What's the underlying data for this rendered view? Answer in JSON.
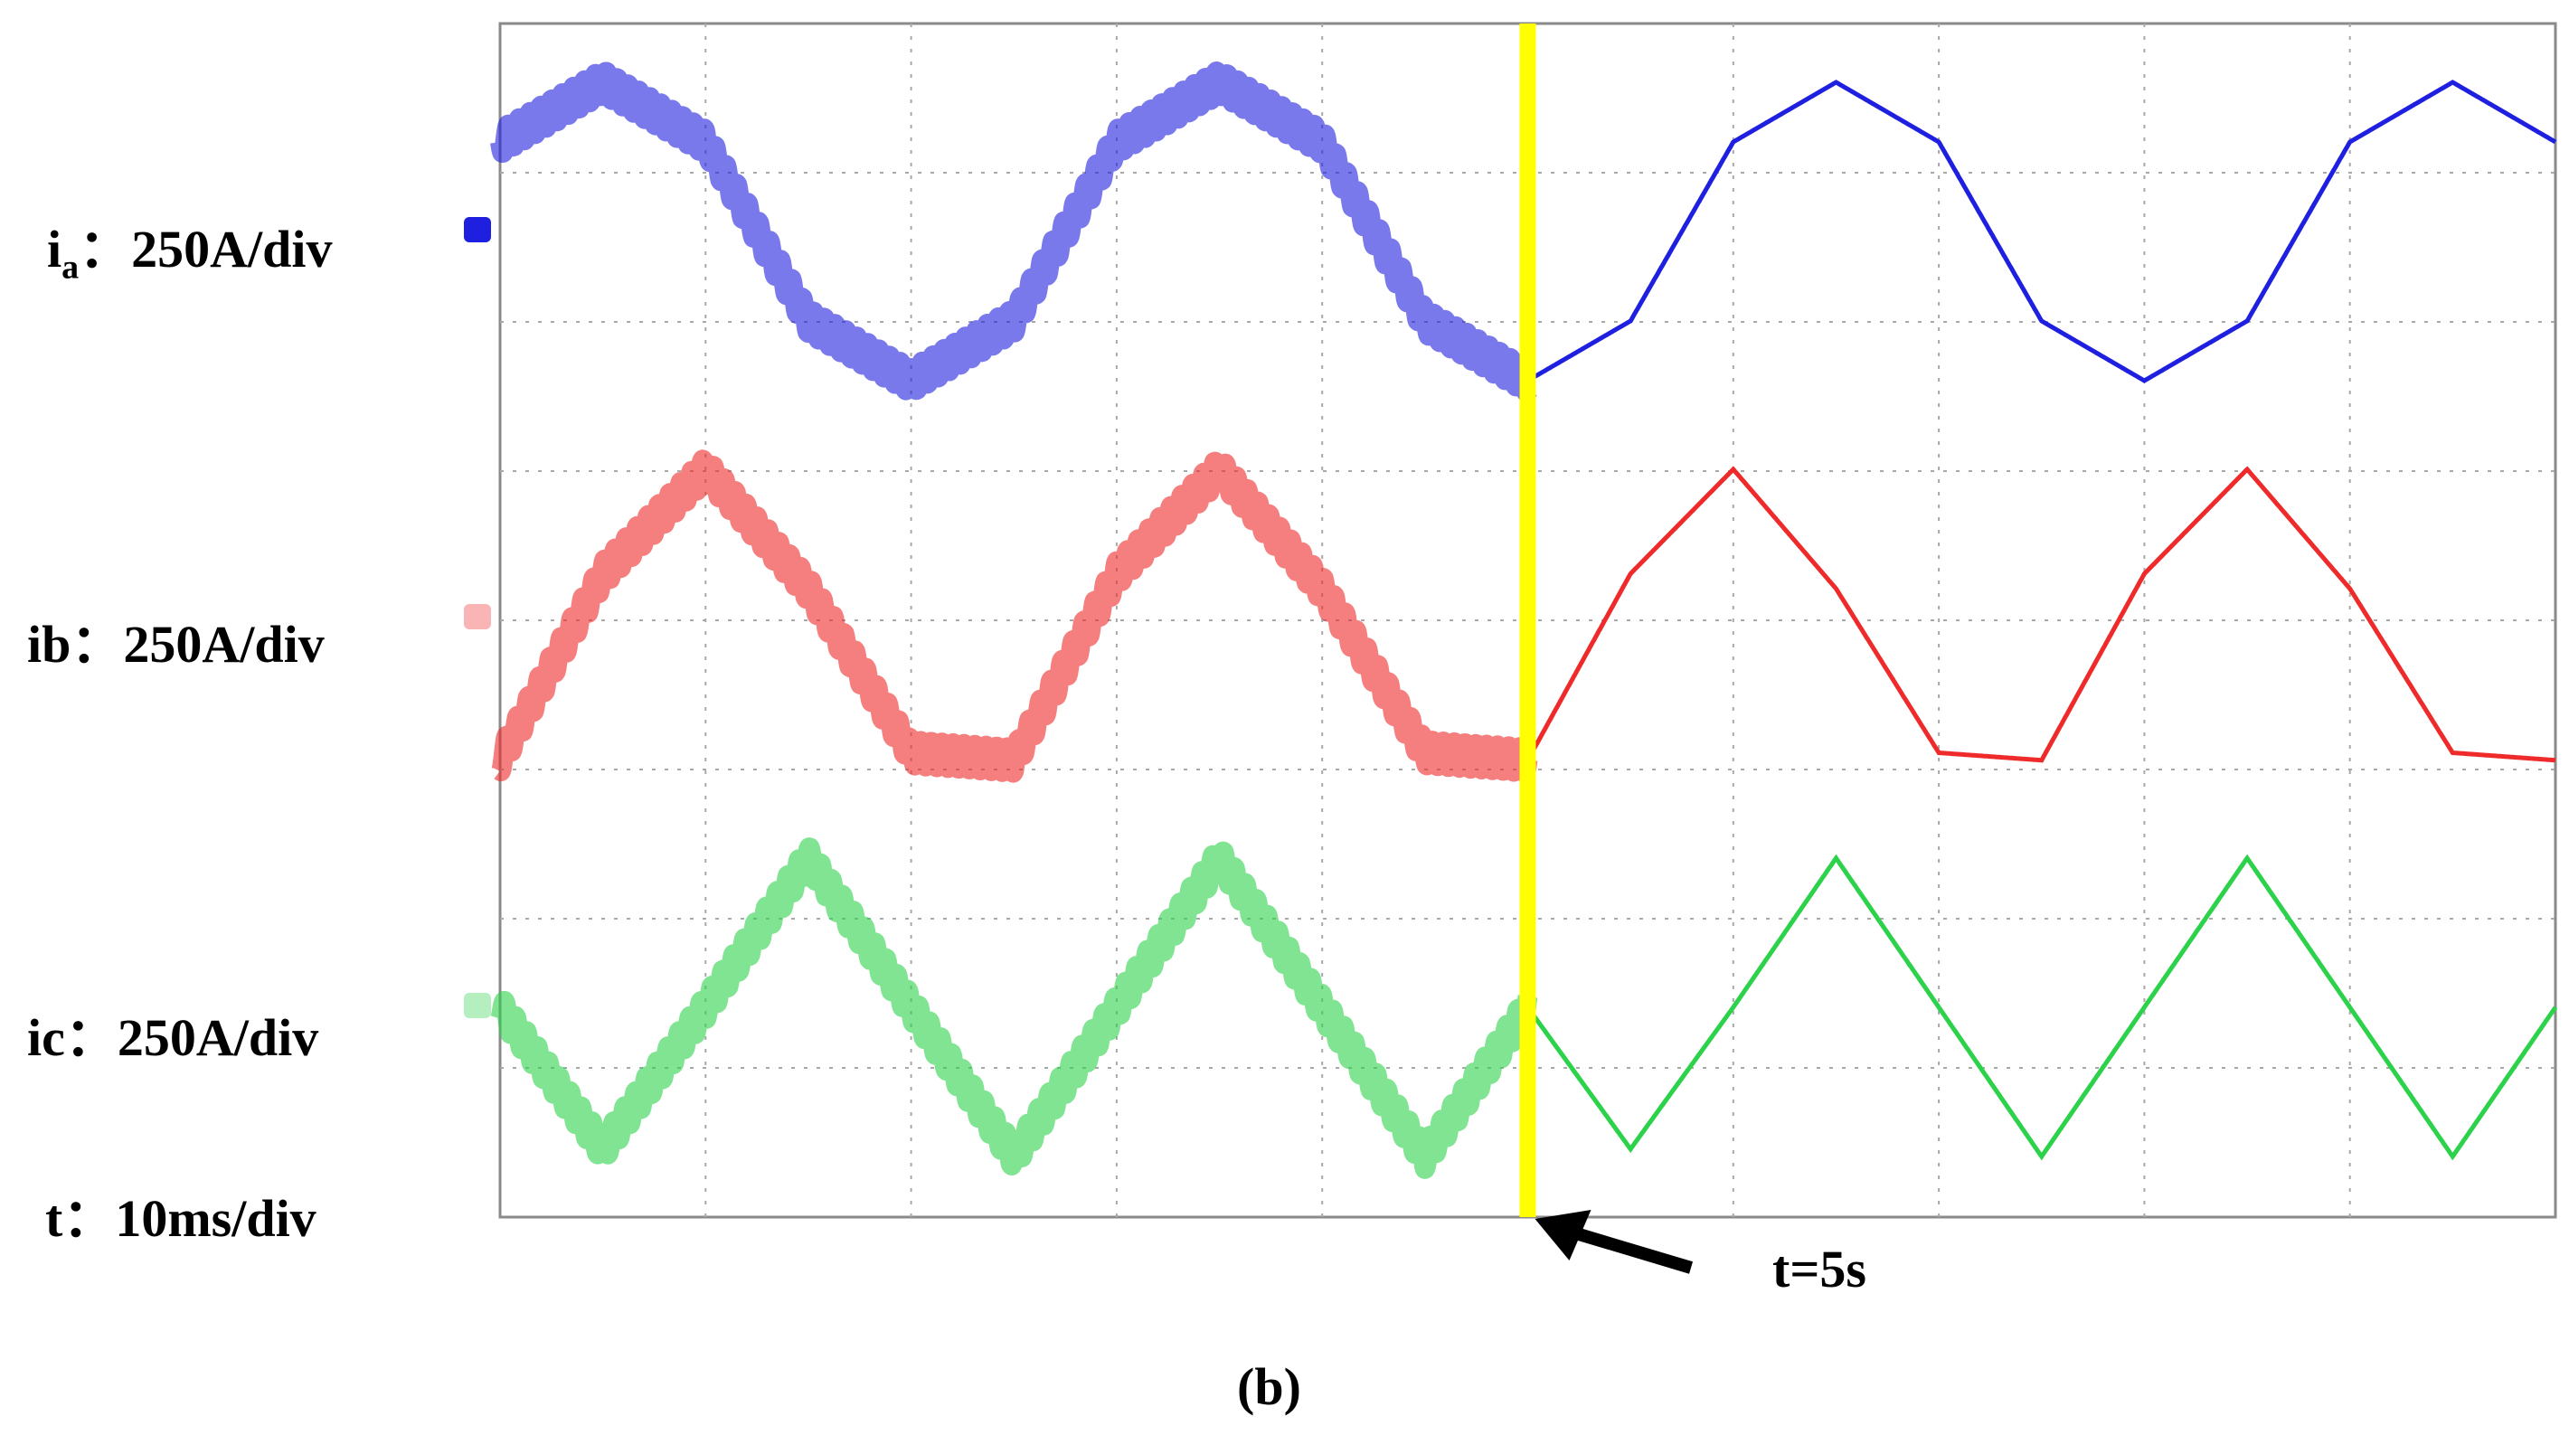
{
  "channels": [
    {
      "name_main": "i",
      "name_sub": "a",
      "scale_text": "：250A/div",
      "color": "#1f1fe0"
    },
    {
      "name_main": "ib",
      "name_sub": "",
      "scale_text": "：250A/div",
      "color": "#ee2a2a"
    },
    {
      "name_main": "ic",
      "name_sub": "",
      "scale_text": "：250A/div",
      "color": "#2bd24a"
    }
  ],
  "time_scale": {
    "label": "t：10ms/div"
  },
  "annotation": {
    "text": "t=5s",
    "marker_color": "#ffff00"
  },
  "caption": "(b)",
  "chart_data": {
    "type": "line",
    "title": "",
    "grid": true,
    "x_unit": "ms",
    "x_divisions": 10,
    "time_per_div_ms": 10,
    "xlim": [
      0,
      100
    ],
    "event": {
      "time_ms": 50,
      "label": "t=5s"
    },
    "series": [
      {
        "name": "ia",
        "scale": "250A/div",
        "color": "#1f1fe0",
        "frequency_hz": 50,
        "noisy_before_event": true,
        "x": [
          0,
          5,
          10,
          15,
          20,
          25,
          30,
          35,
          40,
          45,
          50,
          55,
          60,
          65,
          70,
          75,
          80,
          85,
          90,
          95,
          100
        ],
        "y": [
          0.6,
          1.0,
          0.6,
          -0.6,
          -1.0,
          -0.6,
          0.6,
          1.0,
          0.6,
          -0.6,
          -1.0,
          -0.6,
          0.6,
          1.0,
          0.6,
          -0.6,
          -1.0,
          -0.6,
          0.6,
          1.0,
          0.6
        ]
      },
      {
        "name": "ib",
        "scale": "250A/div",
        "color": "#ee2a2a",
        "frequency_hz": 50,
        "noisy_before_event": true,
        "x": [
          0,
          5,
          10,
          15,
          20,
          25,
          30,
          35,
          40,
          45,
          50,
          55,
          60,
          65,
          70,
          75,
          80,
          85,
          90,
          95,
          100
        ],
        "y": [
          -0.95,
          0.3,
          1.0,
          0.2,
          -0.9,
          -0.95,
          0.3,
          1.0,
          0.2,
          -0.9,
          -0.95,
          0.3,
          1.0,
          0.2,
          -0.9,
          -0.95,
          0.3,
          1.0,
          0.2,
          -0.9,
          -0.95
        ]
      },
      {
        "name": "ic",
        "scale": "250A/div",
        "color": "#2bd24a",
        "frequency_hz": 50,
        "noisy_before_event": true,
        "x": [
          0,
          5,
          10,
          15,
          20,
          25,
          30,
          35,
          40,
          45,
          50,
          55,
          60,
          65,
          70,
          75,
          80,
          85,
          90,
          95,
          100
        ],
        "y": [
          0.0,
          -0.95,
          0.0,
          1.0,
          0.0,
          -1.0,
          0.0,
          1.0,
          0.0,
          -1.0,
          0.0,
          -0.95,
          0.0,
          1.0,
          0.0,
          -1.0,
          0.0,
          1.0,
          0.0,
          -1.0,
          0.0
        ]
      }
    ]
  }
}
